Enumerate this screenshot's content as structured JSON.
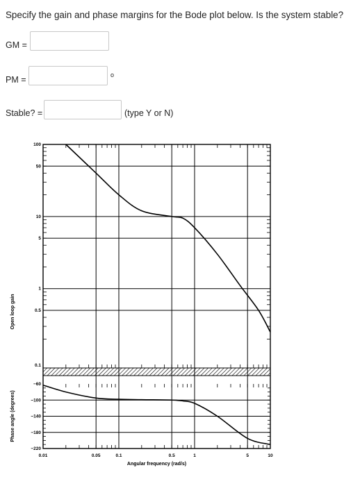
{
  "question": "Specify the gain and phase margins for the Bode plot below. Is the system stable?",
  "fields": {
    "gm": {
      "label": "GM =",
      "value": ""
    },
    "pm": {
      "label": "PM =",
      "value": "",
      "unit": "o"
    },
    "stable": {
      "label": "Stable? =",
      "value": "",
      "hint": "(type Y or N)"
    }
  },
  "chart_data": {
    "type": "line",
    "xlabel": "Angular frequency (rad/s)",
    "xscale": "log",
    "xlim": [
      0.01,
      10
    ],
    "x_ticks": [
      "0.01",
      "0.05",
      "0.1",
      "0.5",
      "1",
      "5",
      "10"
    ],
    "gain": {
      "ylabel": "Open loop gain",
      "yscale": "log",
      "ylim": [
        0.1,
        100
      ],
      "y_ticks": [
        "100",
        "50",
        "10",
        "5",
        "1",
        "0.5",
        "0.1"
      ],
      "x": [
        0.02,
        0.05,
        0.1,
        0.2,
        0.5,
        0.7,
        1.0,
        2.0,
        4.0,
        7.0,
        10.0
      ],
      "y": [
        100,
        40,
        20,
        12,
        10,
        9.5,
        7,
        3,
        1.1,
        0.5,
        0.25
      ]
    },
    "phase": {
      "ylabel": "Phase angle (degrees)",
      "ylim": [
        -220,
        -60
      ],
      "y_ticks": [
        "-60",
        "-100",
        "-140",
        "-180",
        "-220"
      ],
      "x": [
        0.01,
        0.02,
        0.05,
        0.1,
        0.2,
        0.5,
        0.7,
        1.0,
        2.0,
        5.0,
        10.0
      ],
      "y": [
        -63,
        -80,
        -95,
        -98,
        -99,
        -100,
        -102,
        -108,
        -140,
        -195,
        -210
      ]
    },
    "grid": true
  }
}
